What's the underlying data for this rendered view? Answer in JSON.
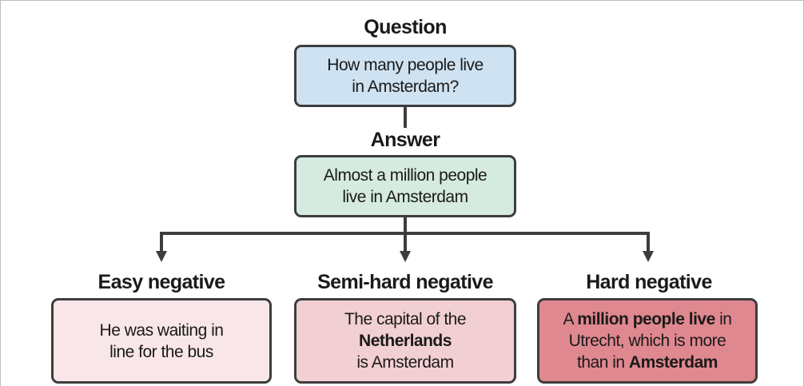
{
  "question": {
    "label": "Question",
    "line1": "How many people live",
    "line2": "in Amsterdam?"
  },
  "answer": {
    "label": "Answer",
    "line1": "Almost a million people",
    "line2": "live in Amsterdam"
  },
  "negatives": {
    "easy": {
      "label": "Easy negative",
      "line1": "He was waiting in",
      "line2": "line for the bus"
    },
    "semi_hard": {
      "label": "Semi-hard negative",
      "line1": "The capital of the",
      "line2_bold": "Netherlands",
      "line3": "is Amsterdam"
    },
    "hard": {
      "label": "Hard negative",
      "l1_a": "A ",
      "l1_bold": "million people live",
      "l1_b": " in",
      "line2": "Utrecht, which is more",
      "l3_a": "than in ",
      "l3_bold": "Amsterdam"
    }
  },
  "colors": {
    "question_fill": "#cfe2f1",
    "answer_fill": "#d5ebe0",
    "easy_fill": "#f9e6e8",
    "semi_hard_fill": "#f2cfd2",
    "hard_fill": "#e0888f",
    "stroke": "#3d3d3d"
  }
}
